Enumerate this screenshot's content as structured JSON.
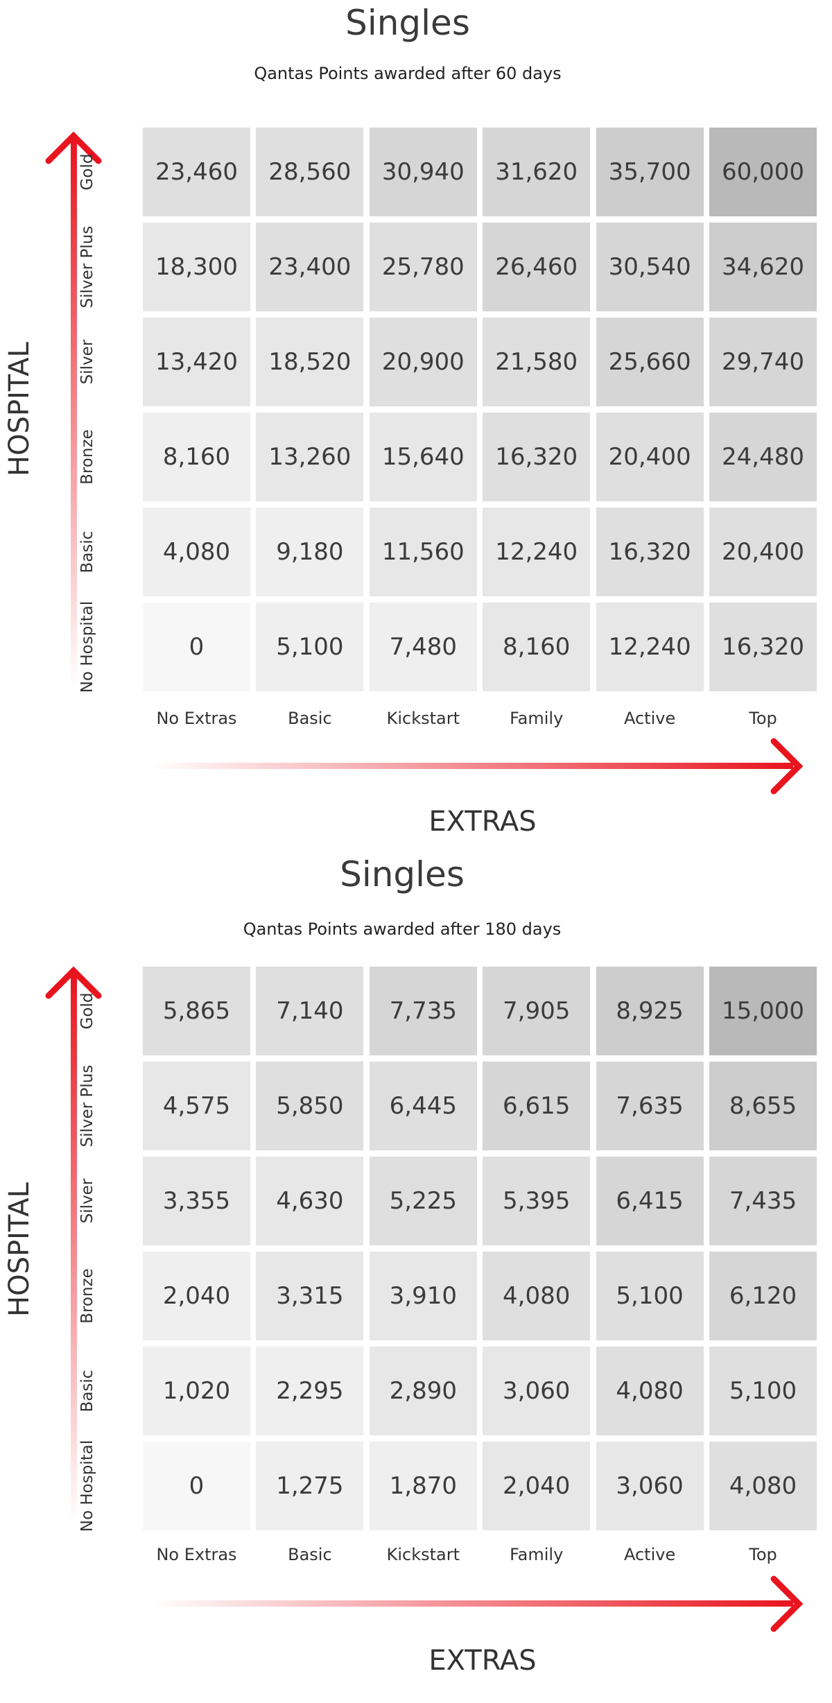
{
  "colors": {
    "arrow": "#e8141e",
    "cell_shades": [
      "#f7f7f7",
      "#efefef",
      "#e7e7e7",
      "#dfdfdf",
      "#d6d6d6",
      "#cdcdcd",
      "#c4c4c4",
      "#b9b9b9"
    ]
  },
  "chart_data": [
    {
      "type": "heatmap",
      "title": "Singles",
      "subtitle": "Qantas Points awarded after 60 days",
      "xlabel": "EXTRAS",
      "ylabel": "HOSPITAL",
      "columns": [
        "No Extras",
        "Basic",
        "Kickstart",
        "Family",
        "Active",
        "Top"
      ],
      "rows": [
        "Gold",
        "Silver Plus",
        "Silver",
        "Bronze",
        "Basic",
        "No Hospital"
      ],
      "values": [
        [
          23460,
          28560,
          30940,
          31620,
          35700,
          60000
        ],
        [
          18300,
          23400,
          25780,
          26460,
          30540,
          34620
        ],
        [
          13420,
          18520,
          20900,
          21580,
          25660,
          29740
        ],
        [
          8160,
          13260,
          15640,
          16320,
          20400,
          24480
        ],
        [
          4080,
          9180,
          11560,
          12240,
          16320,
          20400
        ],
        [
          0,
          5100,
          7480,
          8160,
          12240,
          16320
        ]
      ],
      "display": [
        [
          "23,460",
          "28,560",
          "30,940",
          "31,620",
          "35,700",
          "60,000"
        ],
        [
          "18,300",
          "23,400",
          "25,780",
          "26,460",
          "30,540",
          "34,620"
        ],
        [
          "13,420",
          "18,520",
          "20,900",
          "21,580",
          "25,660",
          "29,740"
        ],
        [
          "8,160",
          "13,260",
          "15,640",
          "16,320",
          "20,400",
          "24,480"
        ],
        [
          "4,080",
          "9,180",
          "11,560",
          "12,240",
          "16,320",
          "20,400"
        ],
        [
          "0",
          "5,100",
          "7,480",
          "8,160",
          "12,240",
          "16,320"
        ]
      ]
    },
    {
      "type": "heatmap",
      "title": "Singles",
      "subtitle": "Qantas Points awarded after 180 days",
      "xlabel": "EXTRAS",
      "ylabel": "HOSPITAL",
      "columns": [
        "No Extras",
        "Basic",
        "Kickstart",
        "Family",
        "Active",
        "Top"
      ],
      "rows": [
        "Gold",
        "Silver Plus",
        "Silver",
        "Bronze",
        "Basic",
        "No Hospital"
      ],
      "values": [
        [
          5865,
          7140,
          7735,
          7905,
          8925,
          15000
        ],
        [
          4575,
          5850,
          6445,
          6615,
          7635,
          8655
        ],
        [
          3355,
          4630,
          5225,
          5395,
          6415,
          7435
        ],
        [
          2040,
          3315,
          3910,
          4080,
          5100,
          6120
        ],
        [
          1020,
          2295,
          2890,
          3060,
          4080,
          5100
        ],
        [
          0,
          1275,
          1870,
          2040,
          3060,
          4080
        ]
      ],
      "display": [
        [
          "5,865",
          "7,140",
          "7,735",
          "7,905",
          "8,925",
          "15,000"
        ],
        [
          "4,575",
          "5,850",
          "6,445",
          "6,615",
          "7,635",
          "8,655"
        ],
        [
          "3,355",
          "4,630",
          "5,225",
          "5,395",
          "6,415",
          "7,435"
        ],
        [
          "2,040",
          "3,315",
          "3,910",
          "4,080",
          "5,100",
          "6,120"
        ],
        [
          "1,020",
          "2,295",
          "2,890",
          "3,060",
          "4,080",
          "5,100"
        ],
        [
          "0",
          "1,275",
          "1,870",
          "2,040",
          "3,060",
          "4,080"
        ]
      ]
    }
  ]
}
